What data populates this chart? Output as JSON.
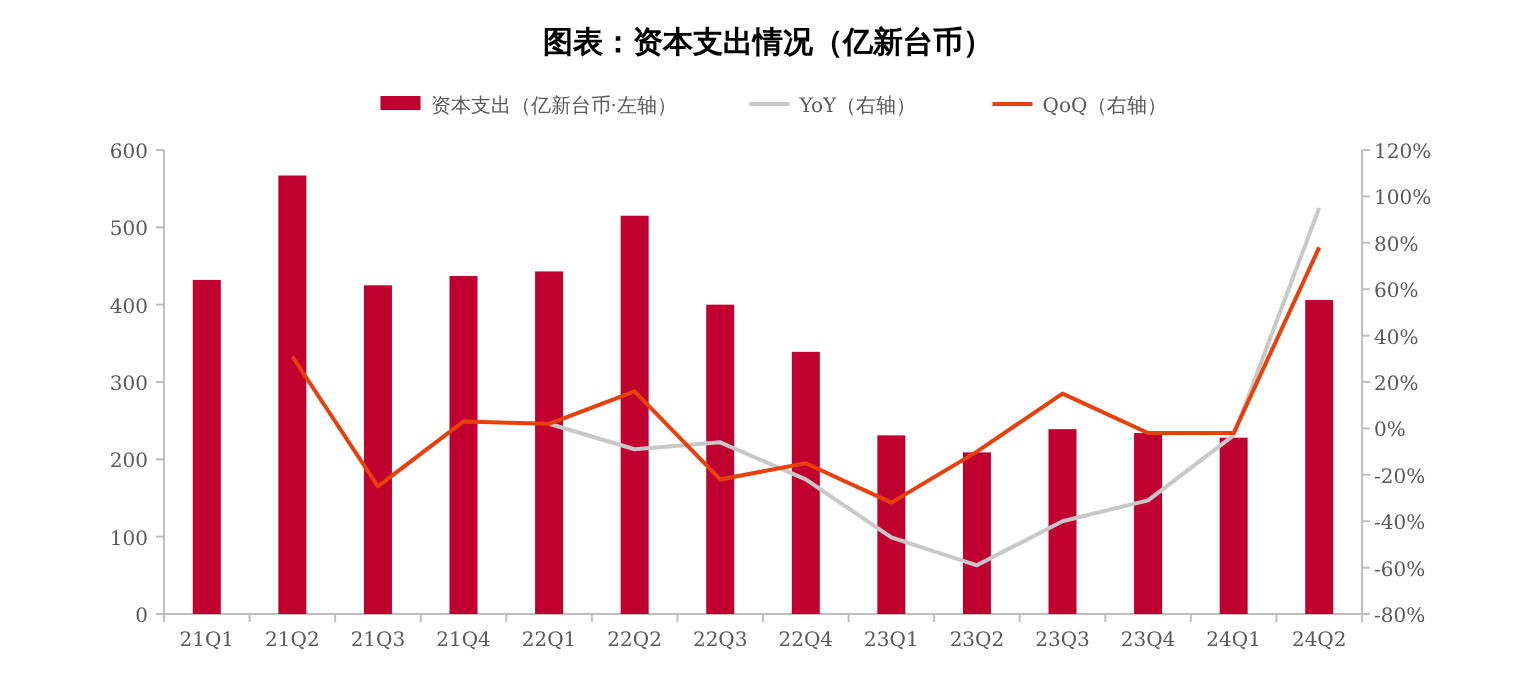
{
  "chart_data": {
    "type": "bar",
    "title": "图表：资本支出情况（亿新台币）",
    "categories": [
      "21Q1",
      "21Q2",
      "21Q3",
      "21Q4",
      "22Q1",
      "22Q2",
      "22Q3",
      "22Q4",
      "23Q1",
      "23Q2",
      "23Q3",
      "23Q4",
      "24Q1",
      "24Q2"
    ],
    "series": [
      {
        "name": "资本支出（亿新台币·左轴）",
        "color": "#c0002f",
        "values": [
          432,
          567,
          425,
          437,
          443,
          515,
          400,
          339,
          231,
          209,
          239,
          234,
          228,
          406
        ]
      },
      {
        "name": "YoY（右轴）",
        "type": "line",
        "axis": "y2",
        "color": "#c8c8c8",
        "values": [
          null,
          null,
          null,
          null,
          2,
          -9,
          -6,
          -22,
          -47,
          -59,
          -40,
          -31,
          -3,
          95
        ]
      },
      {
        "name": "QoQ（右轴）",
        "type": "line",
        "axis": "y2",
        "color": "#e8400c",
        "values": [
          null,
          31,
          -25,
          3,
          2,
          16,
          -22,
          -15,
          -32,
          -10,
          15,
          -2,
          -2,
          78
        ]
      }
    ],
    "ylim": [
      0,
      600
    ],
    "yticks": [
      0,
      100,
      200,
      300,
      400,
      500,
      600
    ],
    "y2lim": [
      -80,
      120
    ],
    "y2ticks": [
      {
        "value": -80,
        "label": "-80%"
      },
      {
        "value": -60,
        "label": "-60%"
      },
      {
        "value": -40,
        "label": "-40%"
      },
      {
        "value": -20,
        "label": "-20%"
      },
      {
        "value": 0,
        "label": "0%"
      },
      {
        "value": 20,
        "label": "20%"
      },
      {
        "value": 40,
        "label": "40%"
      },
      {
        "value": 60,
        "label": "60%"
      },
      {
        "value": 80,
        "label": "80%"
      },
      {
        "value": 100,
        "label": "100%"
      },
      {
        "value": 120,
        "label": "120%"
      }
    ],
    "legend": "top",
    "grid": false
  }
}
